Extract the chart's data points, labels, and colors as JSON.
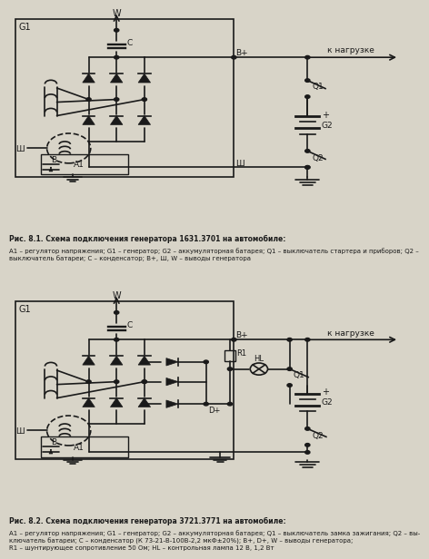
{
  "title1": "Рис. 8.1. Схема подключения генератора 1631.3701 на автомобиле:",
  "caption1": "А1 – регулятор напряжения; G1 – генератор; G2 – аккумуляторная батарея; Q1 – выключатель стартера и приборов; Q2 –\nвыключатель батареи; С – конденсатор; В+, Ш, W – выводы генератора",
  "title2": "Рис. 8.2. Схема подключения генератора 3721.3771 на автомобиле:",
  "caption2": "А1 – регулятор напряжения; G1 – генератор; G2 – аккумуляторная батарея; Q1 – выключатель замка зажигания; Q2 – вы-\nключатель батареи; С – конденсатор (К 73-21-В-100В-2,2 мкФ±20%); В+, D+, W – выводы генератора;\nR1 – шунтирующее сопротивление 50 Ом; HL – контрольная лампа 12 В, 1,2 Вт",
  "bg_color": "#d8d4c8",
  "line_color": "#1a1a1a",
  "text_color": "#1a1a1a"
}
